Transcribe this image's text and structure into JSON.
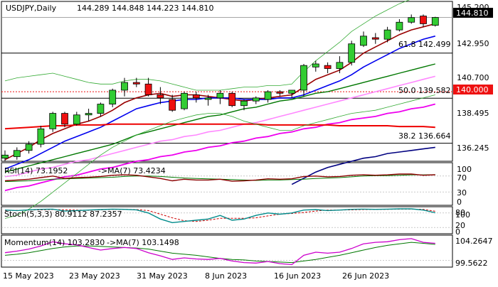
{
  "header": {
    "symbol_tf": "USDJPY,Daily",
    "ohlc": "144.289 144.848 144.223 144.810"
  },
  "price_axis": {
    "ticks": [
      "145.200",
      "142.950",
      "140.700",
      "138.495",
      "136.245"
    ],
    "current_label": "144.810",
    "level_label": "140.000"
  },
  "fib_labels": {
    "f618": "61.8 142.499",
    "f50": "50.0 139.582",
    "f382": "38.2 136.664"
  },
  "rsi": {
    "title": "RSI(14) 73.1952",
    "ma": "->MA(7) 73.4234",
    "ticks": [
      "100",
      "70",
      "30",
      "0"
    ]
  },
  "stoch": {
    "title": "Stoch(5,3,3) 80.9112 87.2357",
    "ticks": [
      "80",
      "100",
      "20",
      "0"
    ]
  },
  "momentum": {
    "title": "Momentum(14) 103.2830",
    "ma": "->MA(7) 103.1498",
    "ticks": [
      "104.2647",
      "99.5622"
    ]
  },
  "x_axis": {
    "labels": [
      "15 May 2023",
      "23 May 2023",
      "31 May 2023",
      "8 Jun 2023",
      "16 Jun 2023",
      "26 Jun 2023"
    ]
  },
  "colors": {
    "bull": "#33cc33",
    "bear": "#ee1111",
    "ma_maroon": "#990000",
    "ma_blue": "#0000ee",
    "ma_green": "#007700",
    "ma_pink": "#ff88ff",
    "ma_magenta": "#ee00ee",
    "ma_red": "#ee0000",
    "ma_navy": "#000080",
    "bollinger": "#33aa33",
    "rsi_line": "#8b0000",
    "rsi_ma": "#007700",
    "stoch_main": "#008b8b",
    "stoch_signal": "#cc0000",
    "momentum_line": "#cc00cc",
    "momentum_ma": "#007700"
  },
  "chart_data": {
    "type": "candlestick",
    "y_range": [
      135.5,
      145.8
    ],
    "candles": [
      {
        "date": "2023-05-12",
        "open": 135.7,
        "high": 136.2,
        "low": 135.5,
        "close": 135.9
      },
      {
        "date": "2023-05-15",
        "open": 135.8,
        "high": 136.4,
        "low": 135.6,
        "close": 136.2
      },
      {
        "date": "2023-05-16",
        "open": 136.2,
        "high": 136.8,
        "low": 136.0,
        "close": 136.6
      },
      {
        "date": "2023-05-17",
        "open": 136.6,
        "high": 137.8,
        "low": 136.4,
        "close": 137.6
      },
      {
        "date": "2023-05-18",
        "open": 137.6,
        "high": 138.7,
        "low": 137.4,
        "close": 138.6
      },
      {
        "date": "2023-05-19",
        "open": 138.6,
        "high": 138.7,
        "low": 137.7,
        "close": 137.9
      },
      {
        "date": "2023-05-22",
        "open": 137.9,
        "high": 138.7,
        "low": 137.8,
        "close": 138.5
      },
      {
        "date": "2023-05-23",
        "open": 138.5,
        "high": 138.9,
        "low": 138.1,
        "close": 138.6
      },
      {
        "date": "2023-05-24",
        "open": 138.6,
        "high": 139.3,
        "low": 138.4,
        "close": 139.2
      },
      {
        "date": "2023-05-25",
        "open": 139.2,
        "high": 140.2,
        "low": 139.0,
        "close": 140.1
      },
      {
        "date": "2023-05-26",
        "open": 140.1,
        "high": 140.9,
        "low": 139.7,
        "close": 140.6
      },
      {
        "date": "2023-05-29",
        "open": 140.6,
        "high": 140.9,
        "low": 140.3,
        "close": 140.5
      },
      {
        "date": "2023-05-30",
        "open": 140.5,
        "high": 140.9,
        "low": 139.7,
        "close": 139.8
      },
      {
        "date": "2023-05-31",
        "open": 139.8,
        "high": 140.3,
        "low": 139.2,
        "close": 139.6
      },
      {
        "date": "2023-06-01",
        "open": 139.5,
        "high": 139.8,
        "low": 138.7,
        "close": 138.8
      },
      {
        "date": "2023-06-02",
        "open": 138.9,
        "high": 140.0,
        "low": 138.8,
        "close": 139.9
      },
      {
        "date": "2023-06-05",
        "open": 139.8,
        "high": 140.0,
        "low": 139.3,
        "close": 139.6
      },
      {
        "date": "2023-06-06",
        "open": 139.5,
        "high": 139.8,
        "low": 139.1,
        "close": 139.6
      },
      {
        "date": "2023-06-07",
        "open": 139.6,
        "high": 140.1,
        "low": 139.2,
        "close": 139.9
      },
      {
        "date": "2023-06-08",
        "open": 139.9,
        "high": 140.0,
        "low": 139.0,
        "close": 139.1
      },
      {
        "date": "2023-06-09",
        "open": 139.1,
        "high": 139.5,
        "low": 138.8,
        "close": 139.4
      },
      {
        "date": "2023-06-12",
        "open": 139.4,
        "high": 139.7,
        "low": 139.2,
        "close": 139.6
      },
      {
        "date": "2023-06-13",
        "open": 139.5,
        "high": 140.1,
        "low": 139.3,
        "close": 140.0
      },
      {
        "date": "2023-06-14",
        "open": 140.0,
        "high": 140.1,
        "low": 139.7,
        "close": 139.9
      },
      {
        "date": "2023-06-15",
        "open": 139.9,
        "high": 140.1,
        "low": 139.6,
        "close": 140.1
      },
      {
        "date": "2023-06-16",
        "open": 140.1,
        "high": 141.8,
        "low": 139.7,
        "close": 141.7
      },
      {
        "date": "2023-06-19",
        "open": 141.6,
        "high": 142.0,
        "low": 141.3,
        "close": 141.8
      },
      {
        "date": "2023-06-20",
        "open": 141.7,
        "high": 141.9,
        "low": 141.2,
        "close": 141.5
      },
      {
        "date": "2023-06-21",
        "open": 141.5,
        "high": 142.3,
        "low": 141.2,
        "close": 141.9
      },
      {
        "date": "2023-06-22",
        "open": 141.9,
        "high": 143.3,
        "low": 141.7,
        "close": 143.1
      },
      {
        "date": "2023-06-23",
        "open": 143.0,
        "high": 143.9,
        "low": 142.9,
        "close": 143.6
      },
      {
        "date": "2023-06-26",
        "open": 143.5,
        "high": 143.8,
        "low": 143.1,
        "close": 143.4
      },
      {
        "date": "2023-06-27",
        "open": 143.4,
        "high": 144.2,
        "low": 143.2,
        "close": 144.0
      },
      {
        "date": "2023-06-28",
        "open": 144.0,
        "high": 144.7,
        "low": 143.9,
        "close": 144.5
      },
      {
        "date": "2023-06-29",
        "open": 144.5,
        "high": 145.0,
        "low": 144.4,
        "close": 144.8
      },
      {
        "date": "2023-06-30",
        "open": 144.9,
        "high": 145.0,
        "low": 144.2,
        "close": 144.4
      },
      {
        "date": "2023-07-03",
        "open": 144.3,
        "high": 144.85,
        "low": 144.22,
        "close": 144.81
      }
    ],
    "overlays": [
      {
        "color_key": "ma_maroon",
        "values": [
          135.6,
          136.0,
          136.4,
          136.9,
          137.3,
          137.6,
          137.9,
          138.1,
          138.4,
          138.8,
          139.3,
          139.6,
          139.8,
          139.9,
          139.7,
          139.8,
          139.8,
          139.7,
          139.6,
          139.5,
          139.4,
          139.5,
          139.6,
          139.7,
          139.8,
          140.3,
          140.8,
          141.1,
          141.4,
          141.9,
          142.5,
          142.9,
          143.3,
          143.7,
          144.0,
          144.2,
          144.4
        ]
      },
      {
        "color_key": "ma_blue",
        "values": [
          135.0,
          135.3,
          135.6,
          136.0,
          136.4,
          136.8,
          137.1,
          137.4,
          137.7,
          138.1,
          138.5,
          138.9,
          139.1,
          139.3,
          139.4,
          139.5,
          139.5,
          139.6,
          139.6,
          139.6,
          139.5,
          139.5,
          139.5,
          139.6,
          139.6,
          139.8,
          140.1,
          140.4,
          140.7,
          141.1,
          141.6,
          142.0,
          142.4,
          142.8,
          143.1,
          143.4,
          143.6
        ]
      },
      {
        "color_key": "ma_green",
        "values": [
          134.8,
          135.0,
          135.2,
          135.4,
          135.6,
          135.8,
          136.0,
          136.2,
          136.4,
          136.6,
          136.9,
          137.2,
          137.4,
          137.6,
          137.8,
          138.0,
          138.2,
          138.4,
          138.5,
          138.7,
          138.9,
          139.0,
          139.2,
          139.4,
          139.5,
          139.7,
          139.9,
          140.0,
          140.2,
          140.4,
          140.6,
          140.8,
          141.0,
          141.2,
          141.4,
          141.6,
          141.8
        ]
      },
      {
        "color_key": "ma_pink",
        "values": [
          134.5,
          134.6,
          134.8,
          135.0,
          135.1,
          135.3,
          135.5,
          135.6,
          135.8,
          136.0,
          136.2,
          136.4,
          136.6,
          136.8,
          136.9,
          137.1,
          137.2,
          137.4,
          137.5,
          137.7,
          137.9,
          138.0,
          138.2,
          138.4,
          138.6,
          138.8,
          139.0,
          139.2,
          139.4,
          139.6,
          139.8,
          140.0,
          140.2,
          140.4,
          140.6,
          140.8,
          141.0
        ]
      },
      {
        "color_key": "ma_magenta",
        "values": [
          133.6,
          133.8,
          133.9,
          134.1,
          134.3,
          134.5,
          134.6,
          134.8,
          135.0,
          135.1,
          135.3,
          135.5,
          135.6,
          135.8,
          135.9,
          136.1,
          136.2,
          136.4,
          136.5,
          136.7,
          136.8,
          137.0,
          137.1,
          137.3,
          137.4,
          137.6,
          137.7,
          137.9,
          138.0,
          138.2,
          138.3,
          138.4,
          138.6,
          138.7,
          138.9,
          139.0,
          139.2
        ]
      },
      {
        "color_key": "ma_red",
        "values": [
          137.6,
          137.65,
          137.7,
          137.75,
          137.8,
          137.8,
          137.85,
          137.85,
          137.85,
          137.9,
          137.9,
          137.9,
          137.9,
          137.9,
          137.9,
          137.9,
          137.9,
          137.9,
          137.9,
          137.9,
          137.9,
          137.9,
          137.85,
          137.85,
          137.85,
          137.85,
          137.85,
          137.85,
          137.8,
          137.8,
          137.8,
          137.8,
          137.8,
          137.75,
          137.75,
          137.75,
          137.7
        ]
      },
      {
        "color_key": "ma_navy",
        "values": [
          null,
          null,
          null,
          null,
          null,
          null,
          null,
          null,
          null,
          null,
          null,
          null,
          null,
          null,
          null,
          null,
          null,
          null,
          null,
          null,
          null,
          null,
          null,
          null,
          134.0,
          134.4,
          134.8,
          135.1,
          135.3,
          135.5,
          135.7,
          135.8,
          136.0,
          136.1,
          136.2,
          136.3,
          136.4
        ]
      },
      {
        "color_key": "bollinger",
        "values": [
          140.7,
          140.9,
          141.0,
          141.1,
          141.2,
          141.0,
          140.8,
          140.6,
          140.5,
          140.5,
          140.7,
          140.8,
          140.8,
          140.7,
          140.5,
          140.3,
          140.1,
          140.1,
          140.1,
          140.2,
          140.3,
          140.3,
          140.4,
          140.4,
          140.5,
          141.3,
          142.0,
          142.6,
          143.2,
          143.9,
          144.4,
          144.9,
          145.3,
          145.7,
          146.0,
          146.2,
          146.4
        ]
      },
      {
        "color_key": "bollinger",
        "values": [
          131.8,
          132.0,
          132.4,
          132.9,
          133.5,
          134.1,
          134.7,
          135.3,
          135.9,
          136.4,
          136.8,
          137.2,
          137.5,
          137.8,
          138.1,
          138.3,
          138.5,
          138.6,
          138.6,
          138.4,
          138.1,
          137.9,
          137.7,
          137.5,
          137.5,
          137.8,
          138.0,
          138.2,
          138.4,
          138.6,
          138.7,
          138.8,
          139.0,
          139.2,
          139.4,
          139.6,
          139.8
        ]
      }
    ],
    "fib_levels": [
      142.499,
      139.582,
      136.664
    ],
    "horizontal_level": 140.0,
    "rsi_values": [
      58,
      60,
      62,
      66,
      70,
      64,
      66,
      67,
      69,
      72,
      73,
      72,
      68,
      64,
      58,
      62,
      60,
      60,
      62,
      57,
      58,
      60,
      63,
      62,
      63,
      69,
      70,
      68,
      69,
      72,
      73,
      72,
      73,
      75,
      75,
      72,
      73.2
    ],
    "rsi_ma_values": [
      56,
      57,
      58,
      60,
      62,
      63,
      64,
      65,
      66,
      67,
      69,
      70,
      70,
      69,
      67,
      65,
      64,
      63,
      62,
      61,
      60,
      59,
      60,
      60,
      61,
      62,
      64,
      65,
      66,
      68,
      70,
      71,
      71,
      72,
      73,
      73,
      73.4
    ],
    "stoch_main": [
      92,
      90,
      93,
      95,
      96,
      88,
      90,
      92,
      94,
      96,
      95,
      93,
      80,
      55,
      40,
      45,
      50,
      55,
      70,
      50,
      55,
      70,
      80,
      75,
      80,
      92,
      94,
      90,
      92,
      95,
      96,
      95,
      96,
      97,
      97,
      92,
      81
    ],
    "stoch_signal": [
      90,
      91,
      92,
      93,
      94,
      93,
      92,
      91,
      93,
      95,
      95,
      94,
      90,
      75,
      60,
      48,
      45,
      50,
      58,
      58,
      58,
      60,
      68,
      75,
      78,
      82,
      88,
      92,
      92,
      93,
      94,
      95,
      95,
      96,
      96,
      95,
      87
    ],
    "momentum": [
      101.5,
      101.8,
      102.2,
      102.8,
      103.6,
      103.2,
      103.0,
      102.5,
      102.0,
      102.3,
      102.5,
      102.3,
      101.5,
      100.9,
      100.2,
      100.5,
      100.3,
      100.2,
      100.4,
      99.9,
      99.6,
      99.5,
      99.8,
      99.4,
      99.2,
      101.0,
      101.6,
      101.4,
      101.6,
      102.3,
      103.2,
      103.5,
      103.6,
      104.0,
      104.2,
      103.5,
      103.3
    ],
    "momentum_ma": [
      101.0,
      101.2,
      101.5,
      101.9,
      102.3,
      102.6,
      102.8,
      102.8,
      102.7,
      102.6,
      102.5,
      102.4,
      102.2,
      101.8,
      101.4,
      101.2,
      101.0,
      100.7,
      100.4,
      100.2,
      100.1,
      99.9,
      99.8,
      99.7,
      99.6,
      99.9,
      100.2,
      100.6,
      101.0,
      101.5,
      102.0,
      102.5,
      102.9,
      103.2,
      103.5,
      103.3,
      103.1
    ]
  }
}
